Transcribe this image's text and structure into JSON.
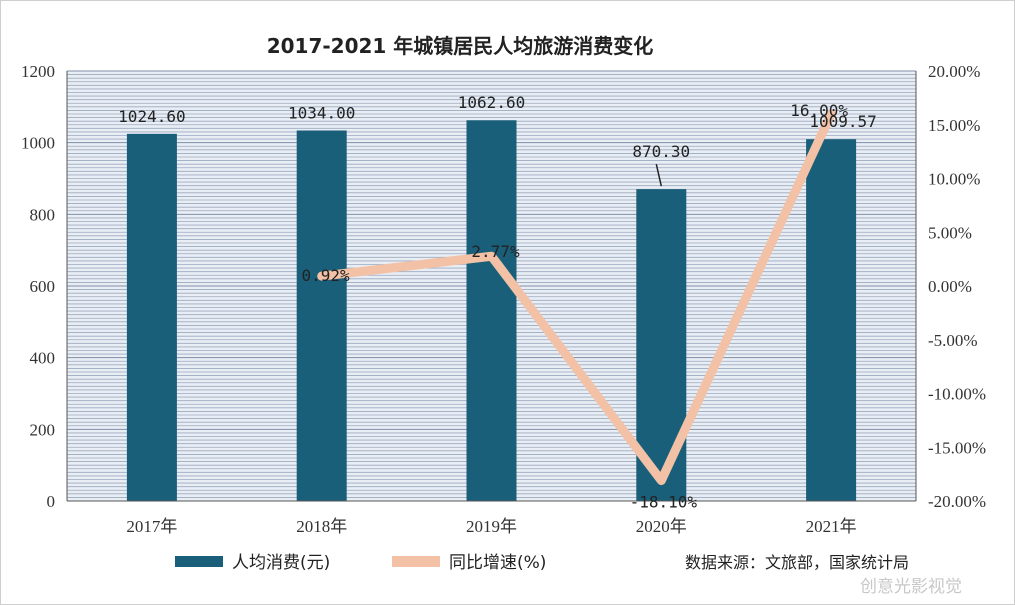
{
  "chart_data": {
    "type": "bar+line",
    "title": "2017-2021 年城镇居民人均旅游消费变化",
    "categories": [
      "2017年",
      "2018年",
      "2019年",
      "2020年",
      "2021年"
    ],
    "series": [
      {
        "name": "人均消费(元)",
        "type": "bar",
        "axis": "left",
        "color": "#1a5f7a",
        "values": [
          1024.6,
          1034.0,
          1062.6,
          870.3,
          1009.57
        ],
        "labels": [
          "1024.60",
          "1034.00",
          "1062.60",
          "870.30",
          "1009.57"
        ]
      },
      {
        "name": "同比增速(%)",
        "type": "line",
        "axis": "right",
        "color": "#f2c1a6",
        "values": [
          null,
          0.92,
          2.77,
          -18.1,
          16.0
        ],
        "labels": [
          "",
          "0.92%",
          "2.77%",
          "-18.10%",
          "16.00%"
        ]
      }
    ],
    "y_left": {
      "ylim": [
        0,
        1200
      ],
      "ticks": [
        0,
        200,
        400,
        600,
        800,
        1000,
        1200
      ],
      "tick_labels": [
        "0",
        "200",
        "400",
        "600",
        "800",
        "1000",
        "1200"
      ]
    },
    "y_right": {
      "ylim": [
        -20,
        20
      ],
      "ticks": [
        -20,
        -15,
        -10,
        -5,
        0,
        5,
        10,
        15,
        20
      ],
      "tick_labels": [
        "-20.00%",
        "-15.00%",
        "-10.00%",
        "-5.00%",
        "0.00%",
        "5.00%",
        "10.00%",
        "15.00%",
        "20.00%"
      ]
    },
    "grid": true,
    "legend_position": "bottom",
    "source": "数据来源：文旅部，国家统计局"
  },
  "watermark": "创意光影视觉"
}
